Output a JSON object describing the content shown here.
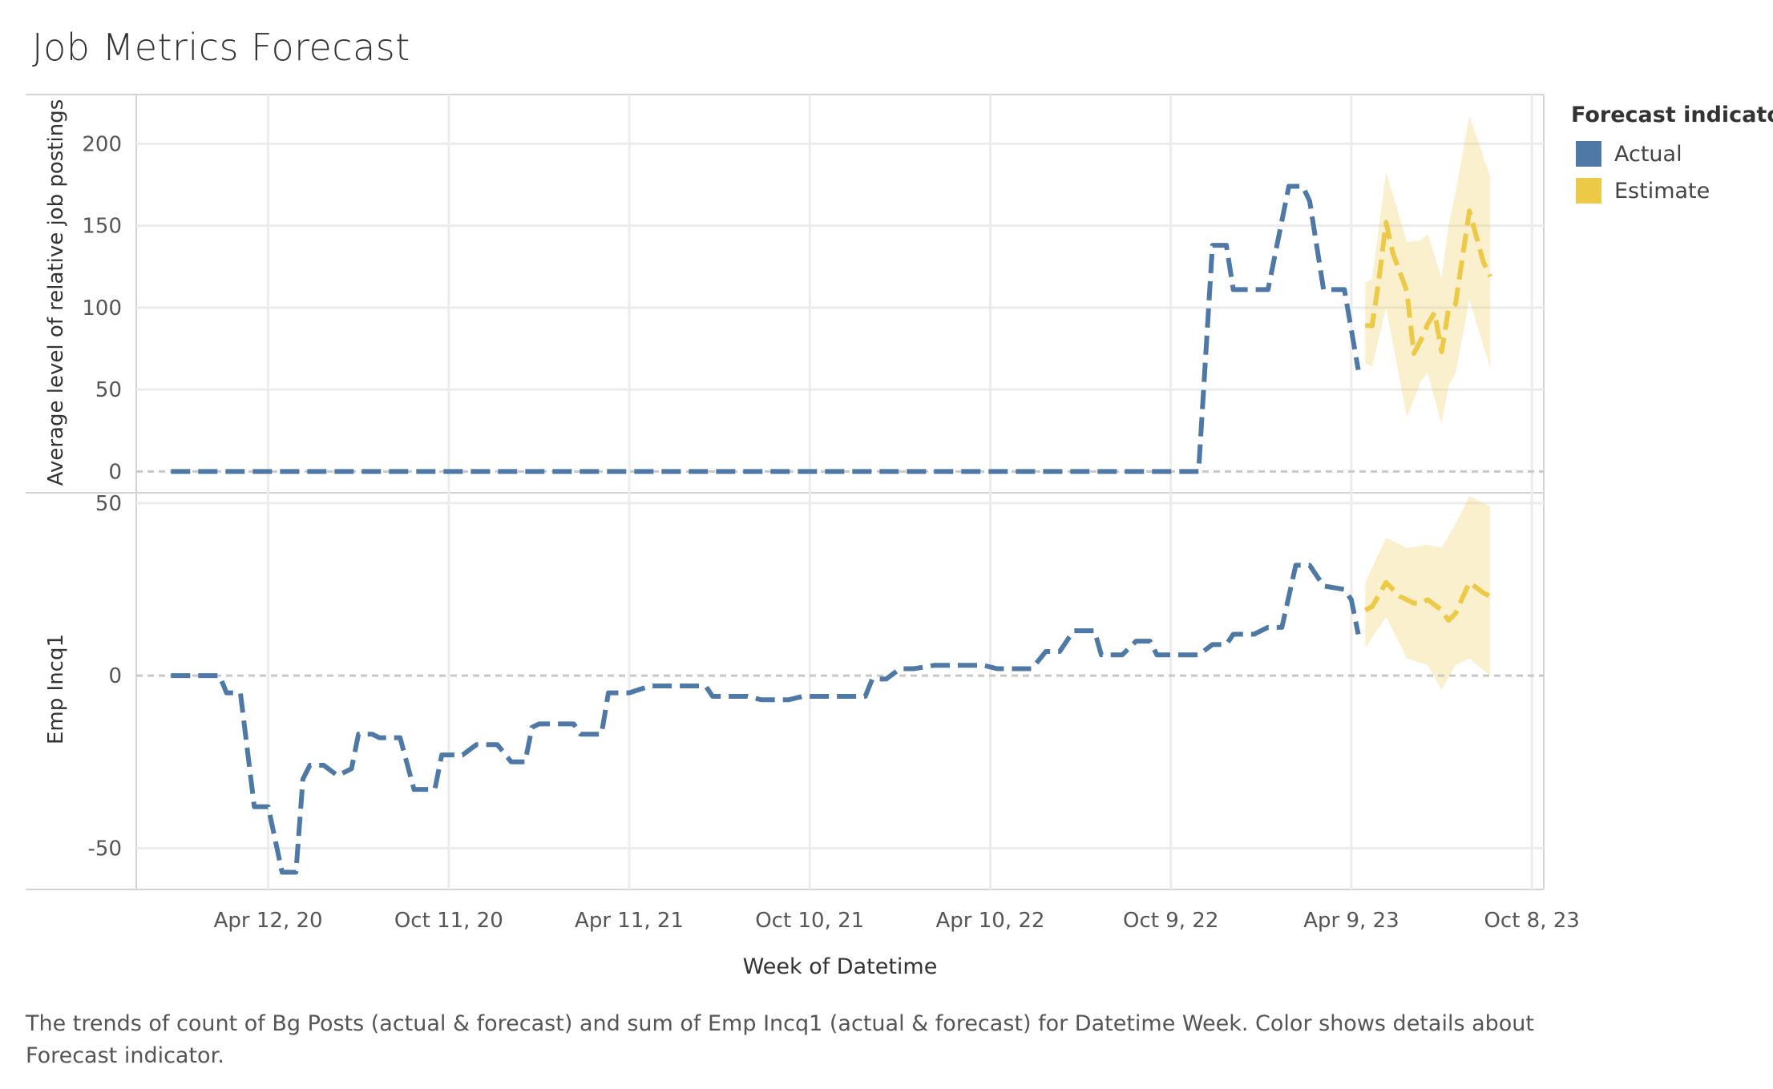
{
  "title": "Job Metrics Forecast",
  "caption": "The trends of count of Bg Posts (actual & forecast)  and sum of Emp Incq1 (actual & forecast)  for Datetime Week.  Color shows details about Forecast indicator.",
  "legend": {
    "title": "Forecast indicator",
    "items": [
      {
        "label": "Actual",
        "color": "#4e79a7"
      },
      {
        "label": "Estimate",
        "color": "#edc948"
      }
    ]
  },
  "chart_data": {
    "type": "line",
    "xlabel": "Week of Datetime",
    "x_ticks": [
      "Apr 12, 20",
      "Oct 11, 20",
      "Apr 11, 21",
      "Oct 10, 21",
      "Apr 10, 22",
      "Oct 9, 22",
      "Apr 9, 23",
      "Oct 8, 23"
    ],
    "x_ticks_iso": [
      "2020-04-12",
      "2020-10-11",
      "2021-04-11",
      "2021-10-10",
      "2022-04-10",
      "2022-10-09",
      "2023-04-09",
      "2023-10-08"
    ],
    "xlim": [
      "2019-12-01",
      "2023-10-20"
    ],
    "panels": [
      {
        "ylabel": "Average level of relative job postings",
        "ylim": [
          -13,
          230
        ],
        "y_ticks": [
          0,
          50,
          100,
          150,
          200
        ],
        "series": [
          {
            "name": "Actual",
            "color": "#4e79a7",
            "points": [
              [
                "2020-01-05",
                0
              ],
              [
                "2022-11-06",
                0
              ],
              [
                "2022-11-20",
                138
              ],
              [
                "2022-12-04",
                138
              ],
              [
                "2022-12-11",
                111
              ],
              [
                "2023-01-15",
                111
              ],
              [
                "2023-02-05",
                174
              ],
              [
                "2023-02-19",
                174
              ],
              [
                "2023-02-26",
                165
              ],
              [
                "2023-03-12",
                111
              ],
              [
                "2023-04-02",
                111
              ],
              [
                "2023-04-16",
                62
              ]
            ]
          },
          {
            "name": "Estimate",
            "color": "#edc948",
            "points": [
              [
                "2023-04-23",
                89
              ],
              [
                "2023-04-30",
                89
              ],
              [
                "2023-05-07",
                118
              ],
              [
                "2023-05-14",
                152
              ],
              [
                "2023-05-21",
                133
              ],
              [
                "2023-06-04",
                110
              ],
              [
                "2023-06-11",
                72
              ],
              [
                "2023-06-18",
                80
              ],
              [
                "2023-06-25",
                90
              ],
              [
                "2023-07-02",
                97
              ],
              [
                "2023-07-09",
                73
              ],
              [
                "2023-07-16",
                99
              ],
              [
                "2023-07-23",
                102
              ],
              [
                "2023-08-06",
                159
              ],
              [
                "2023-08-20",
                128
              ],
              [
                "2023-08-27",
                119
              ]
            ],
            "band": [
              [
                "2023-04-23",
                66,
                115
              ],
              [
                "2023-04-30",
                64,
                118
              ],
              [
                "2023-05-14",
                100,
                183
              ],
              [
                "2023-06-04",
                33,
                140
              ],
              [
                "2023-06-18",
                55,
                141
              ],
              [
                "2023-06-25",
                60,
                145
              ],
              [
                "2023-07-09",
                29,
                118
              ],
              [
                "2023-07-16",
                52,
                150
              ],
              [
                "2023-07-23",
                60,
                170
              ],
              [
                "2023-08-06",
                105,
                217
              ],
              [
                "2023-08-27",
                63,
                180
              ]
            ]
          }
        ]
      },
      {
        "ylabel": "Emp Incq1",
        "ylim": [
          -62,
          53
        ],
        "y_ticks": [
          -50,
          0,
          50
        ],
        "series": [
          {
            "name": "Actual",
            "color": "#4e79a7",
            "points": [
              [
                "2020-01-05",
                0
              ],
              [
                "2020-02-23",
                0
              ],
              [
                "2020-03-01",
                -5
              ],
              [
                "2020-03-15",
                -5
              ],
              [
                "2020-03-29",
                -38
              ],
              [
                "2020-04-12",
                -38
              ],
              [
                "2020-04-26",
                -57
              ],
              [
                "2020-05-10",
                -57
              ],
              [
                "2020-05-17",
                -30
              ],
              [
                "2020-05-24",
                -26
              ],
              [
                "2020-06-07",
                -26
              ],
              [
                "2020-06-21",
                -29
              ],
              [
                "2020-07-05",
                -27
              ],
              [
                "2020-07-12",
                -17
              ],
              [
                "2020-07-26",
                -17
              ],
              [
                "2020-08-02",
                -18
              ],
              [
                "2020-08-23",
                -18
              ],
              [
                "2020-09-06",
                -33
              ],
              [
                "2020-09-27",
                -33
              ],
              [
                "2020-10-04",
                -23
              ],
              [
                "2020-10-25",
                -23
              ],
              [
                "2020-11-08",
                -20
              ],
              [
                "2020-11-29",
                -20
              ],
              [
                "2020-12-13",
                -25
              ],
              [
                "2020-12-27",
                -25
              ],
              [
                "2021-01-03",
                -15
              ],
              [
                "2021-01-10",
                -14
              ],
              [
                "2021-02-14",
                -14
              ],
              [
                "2021-02-21",
                -17
              ],
              [
                "2021-03-14",
                -17
              ],
              [
                "2021-03-21",
                -5
              ],
              [
                "2021-04-11",
                -5
              ],
              [
                "2021-05-02",
                -3
              ],
              [
                "2021-06-27",
                -3
              ],
              [
                "2021-07-04",
                -6
              ],
              [
                "2021-07-11",
                -6
              ],
              [
                "2021-08-08",
                -6
              ],
              [
                "2021-08-22",
                -7
              ],
              [
                "2021-09-19",
                -7
              ],
              [
                "2021-10-03",
                -6
              ],
              [
                "2021-10-31",
                -6
              ],
              [
                "2021-11-07",
                -6
              ],
              [
                "2021-12-05",
                -6
              ],
              [
                "2021-12-12",
                -1
              ],
              [
                "2021-12-26",
                -1
              ],
              [
                "2022-01-09",
                2
              ],
              [
                "2022-01-23",
                2
              ],
              [
                "2022-02-13",
                3
              ],
              [
                "2022-04-03",
                3
              ],
              [
                "2022-04-17",
                2
              ],
              [
                "2022-05-22",
                2
              ],
              [
                "2022-06-05",
                7
              ],
              [
                "2022-06-19",
                7
              ],
              [
                "2022-07-03",
                13
              ],
              [
                "2022-07-24",
                13
              ],
              [
                "2022-07-31",
                6
              ],
              [
                "2022-08-21",
                6
              ],
              [
                "2022-09-04",
                10
              ],
              [
                "2022-09-18",
                10
              ],
              [
                "2022-09-25",
                6
              ],
              [
                "2022-10-23",
                6
              ],
              [
                "2022-11-06",
                6
              ],
              [
                "2022-11-20",
                9
              ],
              [
                "2022-12-04",
                9
              ],
              [
                "2022-12-11",
                12
              ],
              [
                "2023-01-01",
                12
              ],
              [
                "2023-01-15",
                14
              ],
              [
                "2023-01-29",
                14
              ],
              [
                "2023-02-12",
                32
              ],
              [
                "2023-02-26",
                32
              ],
              [
                "2023-03-12",
                26
              ],
              [
                "2023-04-02",
                25
              ],
              [
                "2023-04-09",
                22
              ],
              [
                "2023-04-16",
                12
              ]
            ]
          },
          {
            "name": "Estimate",
            "color": "#edc948",
            "points": [
              [
                "2023-04-23",
                19
              ],
              [
                "2023-04-30",
                20
              ],
              [
                "2023-05-14",
                27
              ],
              [
                "2023-05-28",
                23
              ],
              [
                "2023-06-11",
                21
              ],
              [
                "2023-06-18",
                21
              ],
              [
                "2023-06-25",
                22
              ],
              [
                "2023-07-09",
                19
              ],
              [
                "2023-07-16",
                16
              ],
              [
                "2023-07-23",
                18
              ],
              [
                "2023-08-06",
                27
              ],
              [
                "2023-08-20",
                24
              ],
              [
                "2023-08-27",
                23
              ]
            ],
            "band": [
              [
                "2023-04-23",
                8,
                27
              ],
              [
                "2023-05-14",
                17,
                40
              ],
              [
                "2023-06-04",
                5,
                37
              ],
              [
                "2023-06-25",
                3,
                38
              ],
              [
                "2023-07-09",
                -4,
                37
              ],
              [
                "2023-07-23",
                3,
                44
              ],
              [
                "2023-08-06",
                5,
                52
              ],
              [
                "2023-08-27",
                0,
                49
              ]
            ]
          }
        ]
      }
    ]
  }
}
